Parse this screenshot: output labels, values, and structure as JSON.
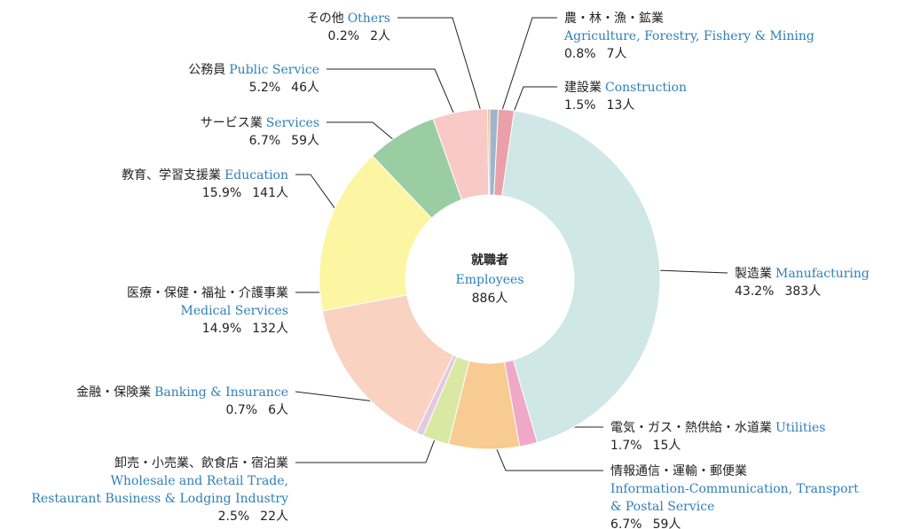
{
  "chart_data": {
    "type": "donut",
    "center": {
      "title": "就職者",
      "subtitle": "Employees",
      "total": "886人"
    },
    "categories": [
      "農・林・漁・鉱業",
      "建設業",
      "製造業",
      "電気・ガス・熱供給・水道業",
      "情報通信・運輸・郵便業",
      "卸売・小売業、飲食店・宿泊業",
      "金融・保険業",
      "医療・保健・福祉・介護事業",
      "教育、学習支援業",
      "サービス業",
      "公務員",
      "その他"
    ],
    "categories_en": [
      [
        "Agriculture, Forestry, Fishery & Mining"
      ],
      [
        "Construction"
      ],
      [
        "Manufacturing"
      ],
      [
        "Utilities"
      ],
      [
        "Information-Communication, Transport",
        "& Postal Service"
      ],
      [
        "Wholesale and Retail Trade,",
        "Restaurant Business & Lodging Industry"
      ],
      [
        "Banking & Insurance"
      ],
      [
        "Medical Services"
      ],
      [
        "Education"
      ],
      [
        "Services"
      ],
      [
        "Public Service"
      ],
      [
        "Others"
      ]
    ],
    "values": [
      0.8,
      1.5,
      43.2,
      1.7,
      6.7,
      2.5,
      0.7,
      14.9,
      15.9,
      6.7,
      5.2,
      0.2
    ],
    "value_labels": [
      "0.8%",
      "1.5%",
      "43.2%",
      "1.7%",
      "6.7%",
      "2.5%",
      "0.7%",
      "14.9%",
      "15.9%",
      "6.7%",
      "5.2%",
      "0.2%"
    ],
    "counts": [
      7,
      13,
      383,
      15,
      59,
      22,
      6,
      132,
      141,
      59,
      46,
      2
    ],
    "count_labels": [
      "7人",
      "13人",
      "383人",
      "15人",
      "59人",
      "22人",
      "6人",
      "132人",
      "141人",
      "59人",
      "46人",
      "2人"
    ],
    "colors": [
      "#9fb5c9",
      "#e9a0a8",
      "#cfe7e6",
      "#ef a8c8",
      "#f8cb92",
      "#d9e8a3",
      "#e2c9e2",
      "#f9d2c2",
      "#fcf6a2",
      "#9bcda3",
      "#f8c9c7",
      "#efb06a"
    ]
  }
}
